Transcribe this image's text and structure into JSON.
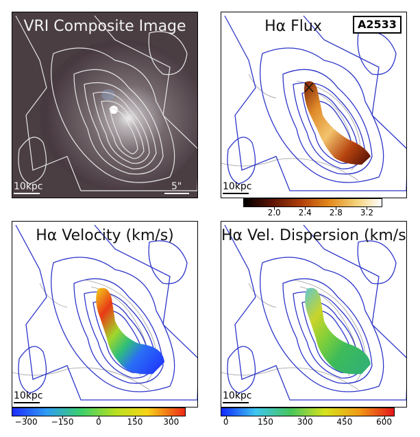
{
  "figure": {
    "tag": "A2533",
    "panels": [
      {
        "title": "VRI Composite Image",
        "scale_label": "10kpc",
        "arcsec_label": "5\""
      },
      {
        "title": "Hα Flux",
        "scale_label": "10kpc"
      },
      {
        "title": "Hα Velocity (km/s)",
        "scale_label": "10kpc"
      },
      {
        "title": "Hα Vel. Dispersion (km/s)",
        "scale_label": "10kpc"
      }
    ],
    "colorbars": {
      "flux": {
        "ticks": [
          "2.0",
          "2.4",
          "2.8",
          "3.2"
        ],
        "range": [
          1.6,
          3.4
        ],
        "colors": [
          "#000000",
          "#5a1205",
          "#b2400c",
          "#e38a1c",
          "#f4d27a",
          "#ffffff"
        ]
      },
      "velocity": {
        "ticks": [
          "−300",
          "−150",
          "0",
          "150",
          "300"
        ],
        "range": [
          -360,
          360
        ],
        "colors": [
          "#1f2cff",
          "#2f9df2",
          "#3ccf6a",
          "#b8e020",
          "#f7d418",
          "#ee2a16"
        ]
      },
      "dispersion": {
        "ticks": [
          "0",
          "150",
          "300",
          "450",
          "600"
        ],
        "range": [
          -20,
          640
        ],
        "colors": [
          "#1028ff",
          "#3fc6ef",
          "#46c55d",
          "#d7e21c",
          "#f09a16",
          "#e4161a"
        ]
      }
    },
    "colors": {
      "contour_composite": "#e6e6e6",
      "contour_blue": "#2c35c8",
      "contour_grey": "#9a9a9a",
      "composite_bg": "#4a3e43"
    }
  }
}
